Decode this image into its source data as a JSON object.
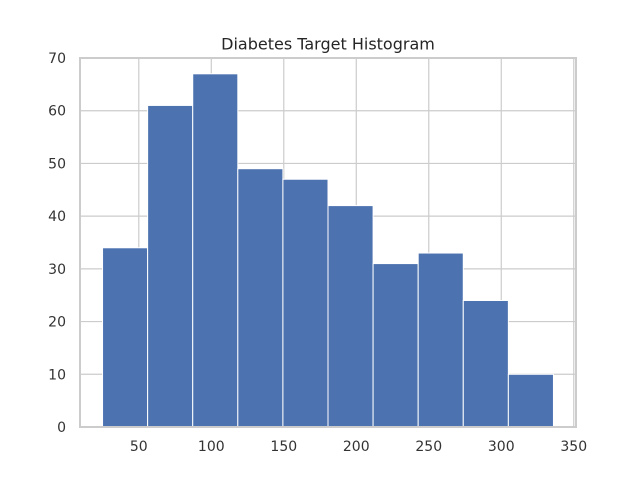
{
  "chart_data": {
    "type": "bar",
    "title": "Diabetes Target Histogram",
    "xlabel": "",
    "ylabel": "",
    "bins": [
      {
        "x0": 25.0,
        "x1": 56.1,
        "count": 34
      },
      {
        "x0": 56.1,
        "x1": 87.2,
        "count": 61
      },
      {
        "x0": 87.2,
        "x1": 118.3,
        "count": 67
      },
      {
        "x0": 118.3,
        "x1": 149.4,
        "count": 49
      },
      {
        "x0": 149.4,
        "x1": 180.5,
        "count": 47
      },
      {
        "x0": 180.5,
        "x1": 211.6,
        "count": 42
      },
      {
        "x0": 211.6,
        "x1": 242.7,
        "count": 31
      },
      {
        "x0": 242.7,
        "x1": 273.8,
        "count": 33
      },
      {
        "x0": 273.8,
        "x1": 304.9,
        "count": 24
      },
      {
        "x0": 304.9,
        "x1": 336.0,
        "count": 10
      }
    ],
    "xlim": [
      9.45,
      351.55
    ],
    "ylim": [
      0,
      70
    ],
    "xticks": [
      50,
      100,
      150,
      200,
      250,
      300,
      350
    ],
    "yticks": [
      0,
      10,
      20,
      30,
      40,
      50,
      60,
      70
    ],
    "grid": true,
    "bar_color": "#4c72b0",
    "grid_color": "#cccccc",
    "axes_edge_color": "#cccccc"
  }
}
